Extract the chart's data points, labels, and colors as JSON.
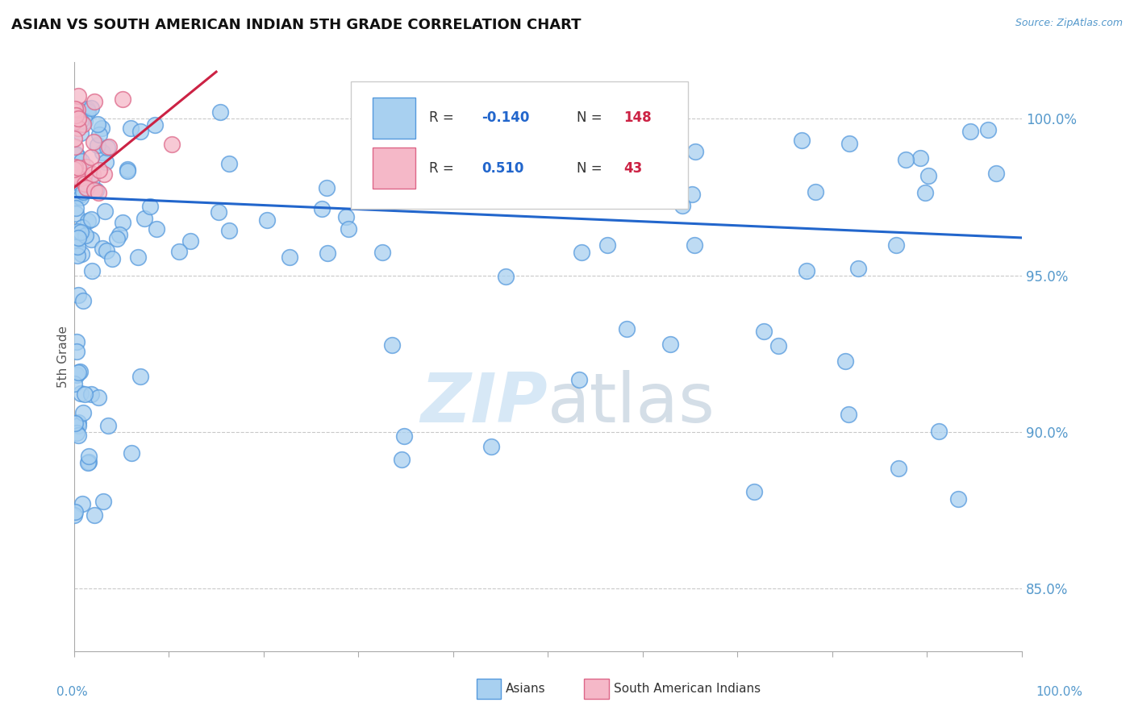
{
  "title": "ASIAN VS SOUTH AMERICAN INDIAN 5TH GRADE CORRELATION CHART",
  "source_text": "Source: ZipAtlas.com",
  "ylabel": "5th Grade",
  "xmin": 0.0,
  "xmax": 100.0,
  "ymin": 83.0,
  "ymax": 101.8,
  "asian_R": -0.14,
  "asian_N": 148,
  "sai_R": 0.51,
  "sai_N": 43,
  "asian_color": "#A8D0F0",
  "asian_edge_color": "#5599DD",
  "sai_color": "#F5B8C8",
  "sai_edge_color": "#DD6688",
  "asian_line_color": "#2266CC",
  "sai_line_color": "#CC2244",
  "background_color": "#FFFFFF",
  "title_color": "#111111",
  "axis_color": "#5599CC",
  "watermark_color": "#D0E4F5",
  "legend_val_color": "#2266CC",
  "legend_N_color": "#CC2244",
  "yticks": [
    85.0,
    90.0,
    95.0,
    100.0
  ],
  "asian_line_x": [
    0.0,
    100.0
  ],
  "asian_line_y": [
    97.5,
    96.2
  ],
  "sai_line_x": [
    0.0,
    15.0
  ],
  "sai_line_y": [
    97.8,
    101.5
  ]
}
